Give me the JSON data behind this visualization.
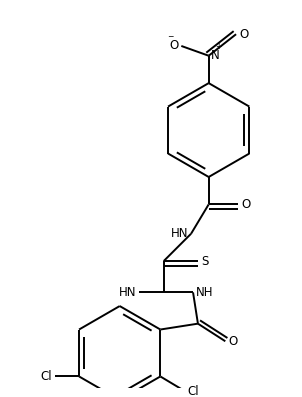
{
  "bg_color": "#ffffff",
  "line_color": "#000000",
  "text_color": "#000000",
  "line_width": 1.4,
  "font_size": 8.5,
  "figsize": [
    3.02,
    3.97
  ],
  "dpi": 100,
  "xlim": [
    0,
    302
  ],
  "ylim": [
    0,
    397
  ]
}
